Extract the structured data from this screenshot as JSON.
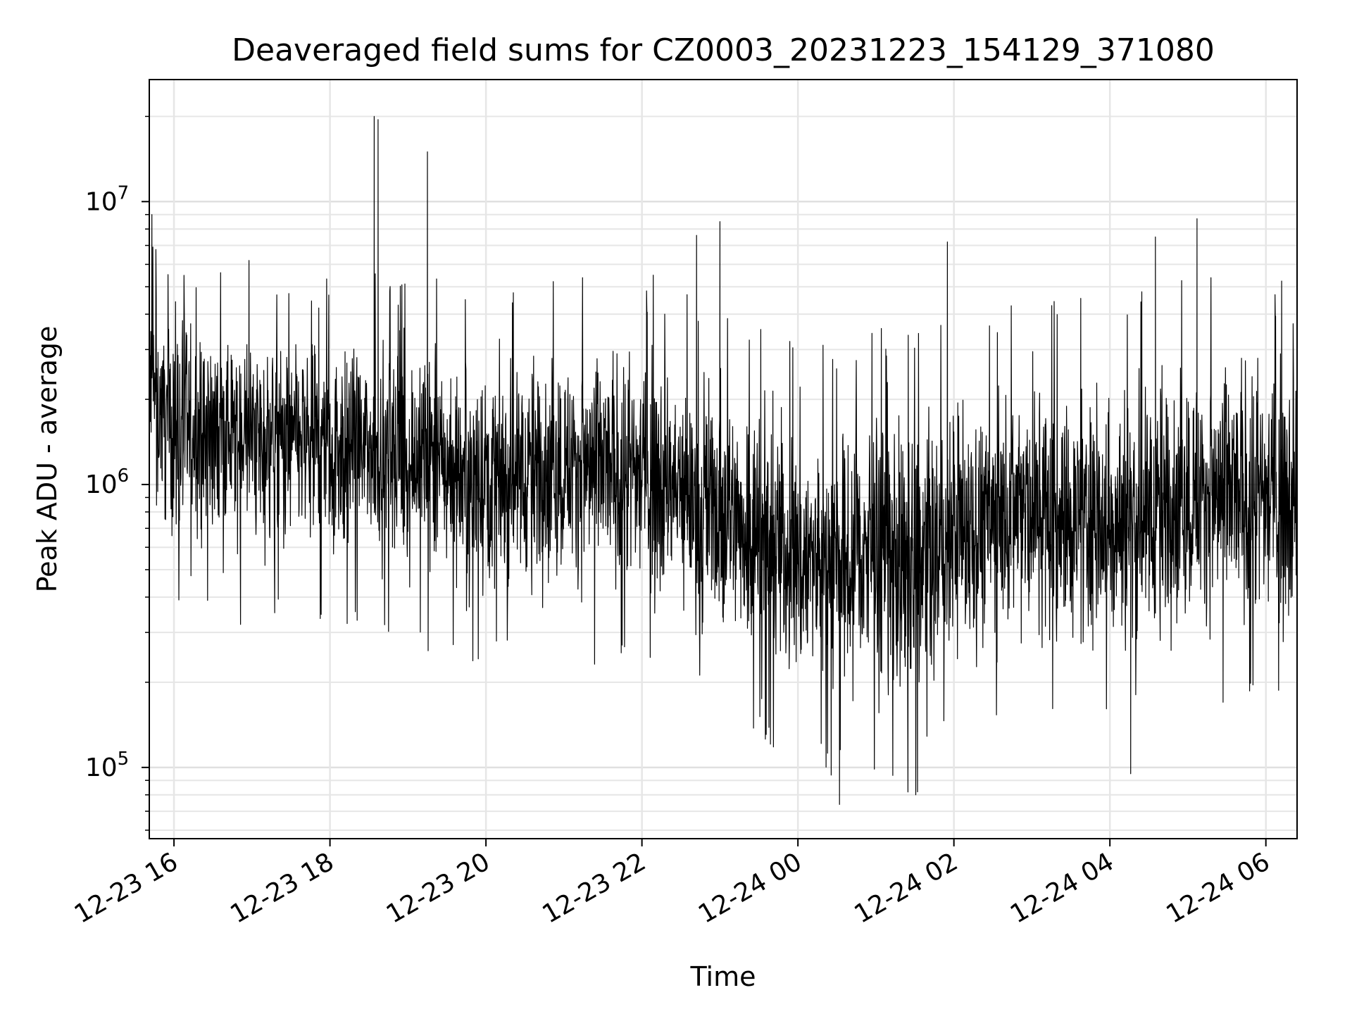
{
  "chart_data": {
    "type": "line",
    "title": "Deaveraged field sums for CZ0003_20231223_154129_371080",
    "xlabel": "Time",
    "ylabel": "Peak ADU - average",
    "y_scale": "log",
    "ylim": [
      56000,
      27000000
    ],
    "xlim": [
      "2023-12-23 15:41",
      "2023-12-24 06:24"
    ],
    "x_ticks": [
      "2023-12-23 16:00",
      "2023-12-23 18:00",
      "2023-12-23 20:00",
      "2023-12-23 22:00",
      "2023-12-24 00:00",
      "2023-12-24 02:00",
      "2023-12-24 04:00",
      "2023-12-24 06:00"
    ],
    "x_tick_labels": [
      "12-23 16",
      "12-23 18",
      "12-23 20",
      "12-23 22",
      "12-24 00",
      "12-24 02",
      "12-24 04",
      "12-24 06"
    ],
    "y_ticks": [
      {
        "value": 100000,
        "base": "10",
        "exp": "5"
      },
      {
        "value": 1000000,
        "base": "10",
        "exp": "6"
      },
      {
        "value": 10000000,
        "base": "10",
        "exp": "7"
      }
    ],
    "grid": true,
    "series_color": "#000000",
    "envelope": [
      {
        "t": "2023-12-23 15:41",
        "median": 2200000,
        "low": 500000,
        "high": 6500000
      },
      {
        "t": "2023-12-23 16:00",
        "median": 1600000,
        "low": 500000,
        "high": 5000000
      },
      {
        "t": "2023-12-23 17:00",
        "median": 1500000,
        "low": 400000,
        "high": 4500000
      },
      {
        "t": "2023-12-23 18:00",
        "median": 1400000,
        "low": 400000,
        "high": 4000000
      },
      {
        "t": "2023-12-23 19:00",
        "median": 1300000,
        "low": 350000,
        "high": 4000000
      },
      {
        "t": "2023-12-23 20:00",
        "median": 1100000,
        "low": 300000,
        "high": 3500000
      },
      {
        "t": "2023-12-23 21:00",
        "median": 1200000,
        "low": 300000,
        "high": 4000000
      },
      {
        "t": "2023-12-23 22:00",
        "median": 1100000,
        "low": 300000,
        "high": 4000000
      },
      {
        "t": "2023-12-23 23:00",
        "median": 800000,
        "low": 200000,
        "high": 3500000
      },
      {
        "t": "2023-12-24 00:00",
        "median": 550000,
        "low": 130000,
        "high": 2500000
      },
      {
        "t": "2023-12-24 00:30",
        "median": 500000,
        "low": 120000,
        "high": 2500000
      },
      {
        "t": "2023-12-24 01:00",
        "median": 600000,
        "low": 130000,
        "high": 2800000
      },
      {
        "t": "2023-12-24 01:30",
        "median": 450000,
        "low": 100000,
        "high": 2500000
      },
      {
        "t": "2023-12-24 02:00",
        "median": 700000,
        "low": 180000,
        "high": 3000000
      },
      {
        "t": "2023-12-24 03:00",
        "median": 800000,
        "low": 200000,
        "high": 3500000
      },
      {
        "t": "2023-12-24 04:00",
        "median": 700000,
        "low": 180000,
        "high": 3500000
      },
      {
        "t": "2023-12-24 05:00",
        "median": 900000,
        "low": 220000,
        "high": 4000000
      },
      {
        "t": "2023-12-24 06:00",
        "median": 900000,
        "low": 220000,
        "high": 4000000
      },
      {
        "t": "2023-12-24 06:24",
        "median": 850000,
        "low": 220000,
        "high": 3500000
      }
    ],
    "notable_points": [
      {
        "t": "2023-12-23 15:43",
        "y": 9000000
      },
      {
        "t": "2023-12-23 18:34",
        "y": 20000000
      },
      {
        "t": "2023-12-23 18:37",
        "y": 19500000
      },
      {
        "t": "2023-12-23 19:15",
        "y": 15000000
      },
      {
        "t": "2023-12-23 23:00",
        "y": 8500000
      },
      {
        "t": "2023-12-23 22:42",
        "y": 7600000
      },
      {
        "t": "2023-12-24 01:55",
        "y": 7200000
      },
      {
        "t": "2023-12-24 04:35",
        "y": 7500000
      },
      {
        "t": "2023-12-24 05:07",
        "y": 8700000
      },
      {
        "t": "2023-12-24 00:32",
        "y": 74000
      },
      {
        "t": "2023-12-24 01:32",
        "y": 82000
      },
      {
        "t": "2023-12-24 04:16",
        "y": 95000
      }
    ]
  }
}
